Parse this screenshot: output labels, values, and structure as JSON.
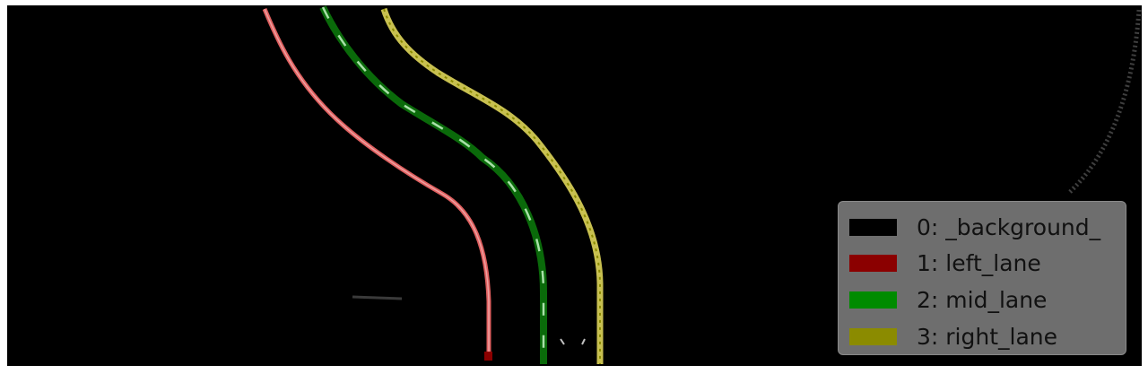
{
  "legend": {
    "items": [
      {
        "label": "0: _background_",
        "color": "#000000"
      },
      {
        "label": "1: left_lane",
        "color": "#8b0000"
      },
      {
        "label": "2: mid_lane",
        "color": "#008b00"
      },
      {
        "label": "3: right_lane",
        "color": "#8b8b00"
      }
    ]
  },
  "lanes": {
    "left_color": "#e06060",
    "mid_color": "#0a6a0a",
    "mid_dash_color": "#a8e0a8",
    "right_color": "#c8c050"
  }
}
